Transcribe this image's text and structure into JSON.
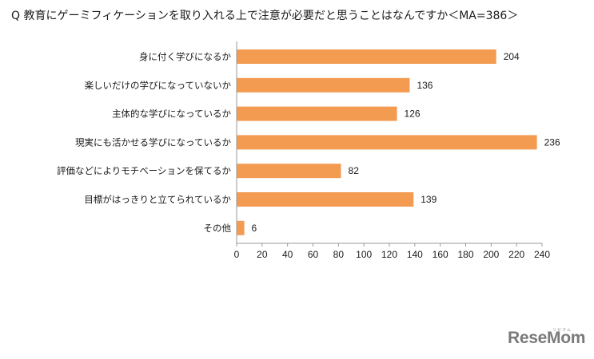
{
  "chart_data": {
    "type": "bar",
    "orientation": "horizontal",
    "title": "Q 教育にゲーミフィケーションを取り入れる上で注意が必要だと思うことはなんですか＜MA=386＞",
    "categories": [
      "身に付く学びになるか",
      "楽しいだけの学びになっていないか",
      "主体的な学びになっているか",
      "現実にも活かせる学びになっているか",
      "評価などによりモチベーションを保てるか",
      "目標がはっきりと立てられているか",
      "その他"
    ],
    "values": [
      204,
      136,
      126,
      236,
      82,
      139,
      6
    ],
    "xlim": [
      0,
      240
    ],
    "xticks": [
      0,
      20,
      40,
      60,
      80,
      100,
      120,
      140,
      160,
      180,
      200,
      220,
      240
    ],
    "xlabel": "",
    "ylabel": "",
    "bar_color": "#f39b51",
    "grid": false,
    "legend": "none"
  },
  "watermark": {
    "text": "ReseMom",
    "subtext": "リセマム"
  }
}
